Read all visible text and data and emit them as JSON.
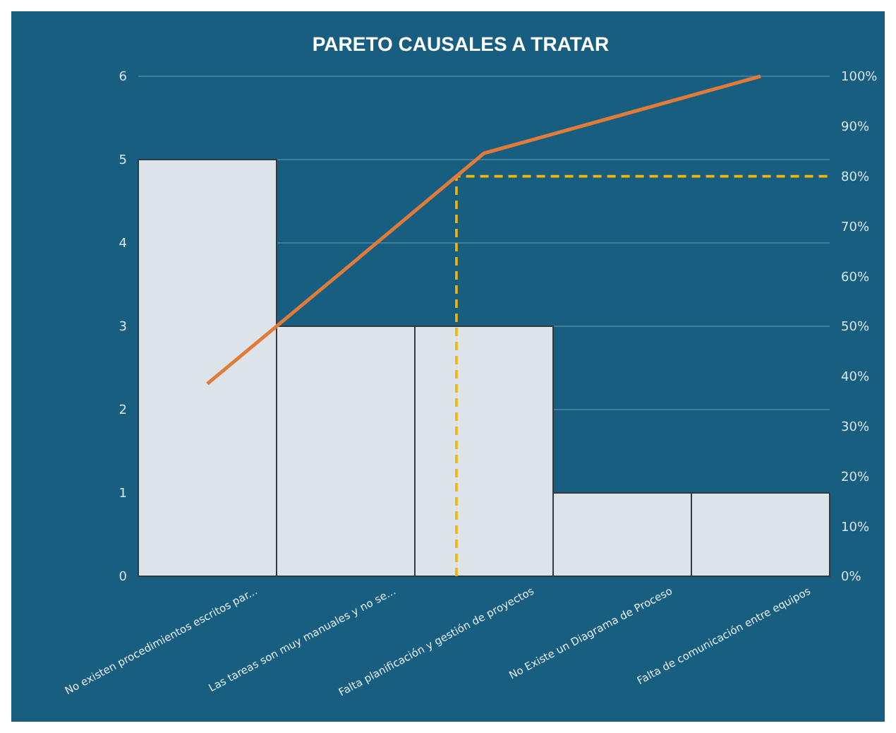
{
  "chart_data": {
    "type": "bar",
    "title": "PARETO CAUSALES A TRATAR",
    "categories": [
      "No existen procedimientos escritos par...",
      "Las tareas son muy  manuales y no se...",
      "Falta planificación y gestión de proyectos",
      "No Existe un Diagrama de Proceso",
      "Falta de comunicación entre equipos"
    ],
    "series": [
      {
        "color": "#dce4e9",
        "values": [
          5,
          3,
          3,
          1,
          1
        ]
      },
      {
        "type": "line",
        "axis": "y2",
        "color": "#e07b39",
        "values": [
          38.5,
          61.5,
          84.6,
          92.3,
          100
        ]
      }
    ],
    "ylim": [
      0,
      6
    ],
    "yticks": [
      0,
      1,
      2,
      3,
      4,
      5,
      6
    ],
    "y2lim": [
      0,
      100
    ],
    "y2ticks": [
      {
        "value": 0,
        "label": "0%"
      },
      {
        "value": 10,
        "label": "10%"
      },
      {
        "value": 20,
        "label": "20%"
      },
      {
        "value": 30,
        "label": "30%"
      },
      {
        "value": 40,
        "label": "40%"
      },
      {
        "value": 50,
        "label": "50%"
      },
      {
        "value": 60,
        "label": "60%"
      },
      {
        "value": 70,
        "label": "70%"
      },
      {
        "value": 80,
        "label": "80%"
      },
      {
        "value": 90,
        "label": "90%"
      },
      {
        "value": 100,
        "label": "100%"
      }
    ],
    "ref_lines": [
      {
        "axis": "y2",
        "value": 80,
        "color": "#f2b600",
        "line_style": "dashed"
      }
    ],
    "grid": "y",
    "marker": "none"
  }
}
